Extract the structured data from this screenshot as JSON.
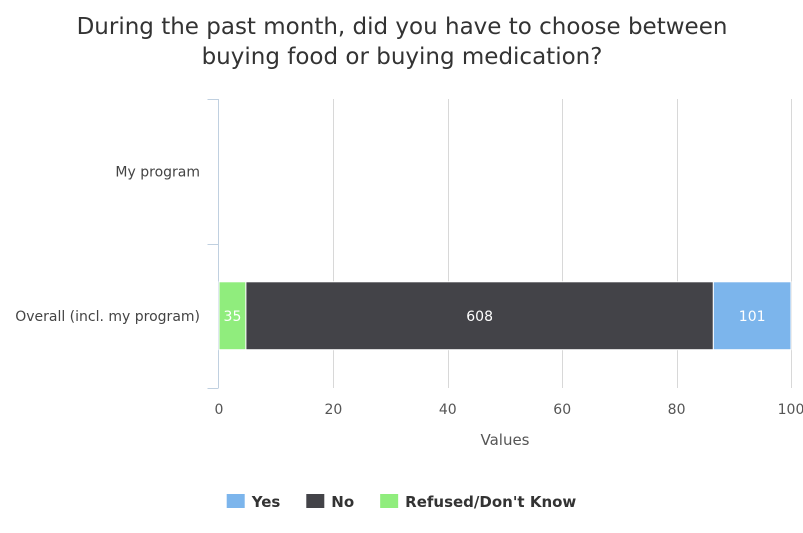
{
  "chart_data": {
    "type": "bar",
    "orientation": "horizontal",
    "stacked": true,
    "stacking": "percent",
    "title_lines": [
      "During the past month, did you have to choose between",
      "buying food or buying medication?"
    ],
    "categories": [
      "My program",
      "Overall (incl. my program)"
    ],
    "series": [
      {
        "name": "Refused/Don't Know",
        "color": "#90ed7d",
        "values": [
          null,
          35
        ]
      },
      {
        "name": "No",
        "color": "#434348",
        "values": [
          null,
          608
        ]
      },
      {
        "name": "Yes",
        "color": "#7cb5ec",
        "values": [
          null,
          101
        ]
      }
    ],
    "xlabel": "Values",
    "xlim": [
      0,
      100
    ],
    "ticks": [
      "0",
      "20",
      "40",
      "60",
      "80",
      "100"
    ],
    "tick_values": [
      0,
      20,
      40,
      60,
      80,
      100
    ],
    "grid": true,
    "legend_position": "bottom",
    "legend": [
      {
        "name": "Yes",
        "color": "#7cb5ec"
      },
      {
        "name": "No",
        "color": "#434348"
      },
      {
        "name": "Refused/Don't Know",
        "color": "#90ed7d"
      }
    ]
  }
}
